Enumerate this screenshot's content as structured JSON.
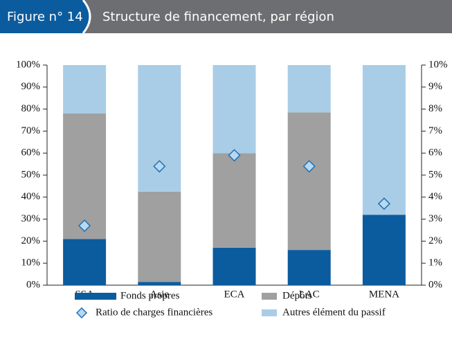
{
  "chart_data": {
    "type": "bar",
    "stacked": true,
    "figure_label": "Figure n° 14",
    "title": "Structure de financement, par région",
    "categories": [
      "SSA",
      "Asie",
      "ECA",
      "LAC",
      "MENA"
    ],
    "series": [
      {
        "name": "Fonds propres",
        "color": "#0b5c9e",
        "values": [
          21,
          1.5,
          17,
          16,
          32
        ]
      },
      {
        "name": "Dépôts",
        "color": "#a0a0a0",
        "values": [
          57,
          41,
          43,
          62.5,
          0
        ]
      },
      {
        "name": "Autres  élément du passif",
        "color": "#a9cde6",
        "values": [
          22,
          57.5,
          40,
          21.5,
          68
        ]
      },
      {
        "name": "Ratio de charges financières",
        "type": "scatter",
        "axis": "y2",
        "color": "#1f6fb5",
        "fill": "#b9d8ee",
        "values": [
          2.7,
          5.4,
          5.9,
          5.4,
          3.7
        ]
      }
    ],
    "ylim": [
      0,
      100
    ],
    "yticks": [
      {
        "value": 0,
        "label": "0%"
      },
      {
        "value": 10,
        "label": "10%"
      },
      {
        "value": 20,
        "label": "20%"
      },
      {
        "value": 30,
        "label": "30%"
      },
      {
        "value": 40,
        "label": "40%"
      },
      {
        "value": 50,
        "label": "50%"
      },
      {
        "value": 60,
        "label": "60%"
      },
      {
        "value": 70,
        "label": "70%"
      },
      {
        "value": 80,
        "label": "80%"
      },
      {
        "value": 90,
        "label": "90%"
      },
      {
        "value": 100,
        "label": "100%"
      }
    ],
    "y2lim": [
      0,
      10
    ],
    "y2ticks": [
      {
        "value": 0,
        "label": "0%"
      },
      {
        "value": 1,
        "label": "1%"
      },
      {
        "value": 2,
        "label": "2%"
      },
      {
        "value": 3,
        "label": "3%"
      },
      {
        "value": 4,
        "label": "4%"
      },
      {
        "value": 5,
        "label": "5%"
      },
      {
        "value": 6,
        "label": "6%"
      },
      {
        "value": 7,
        "label": "7%"
      },
      {
        "value": 8,
        "label": "8%"
      },
      {
        "value": 9,
        "label": "9%"
      },
      {
        "value": 10,
        "label": "10%"
      }
    ],
    "grid": false
  }
}
